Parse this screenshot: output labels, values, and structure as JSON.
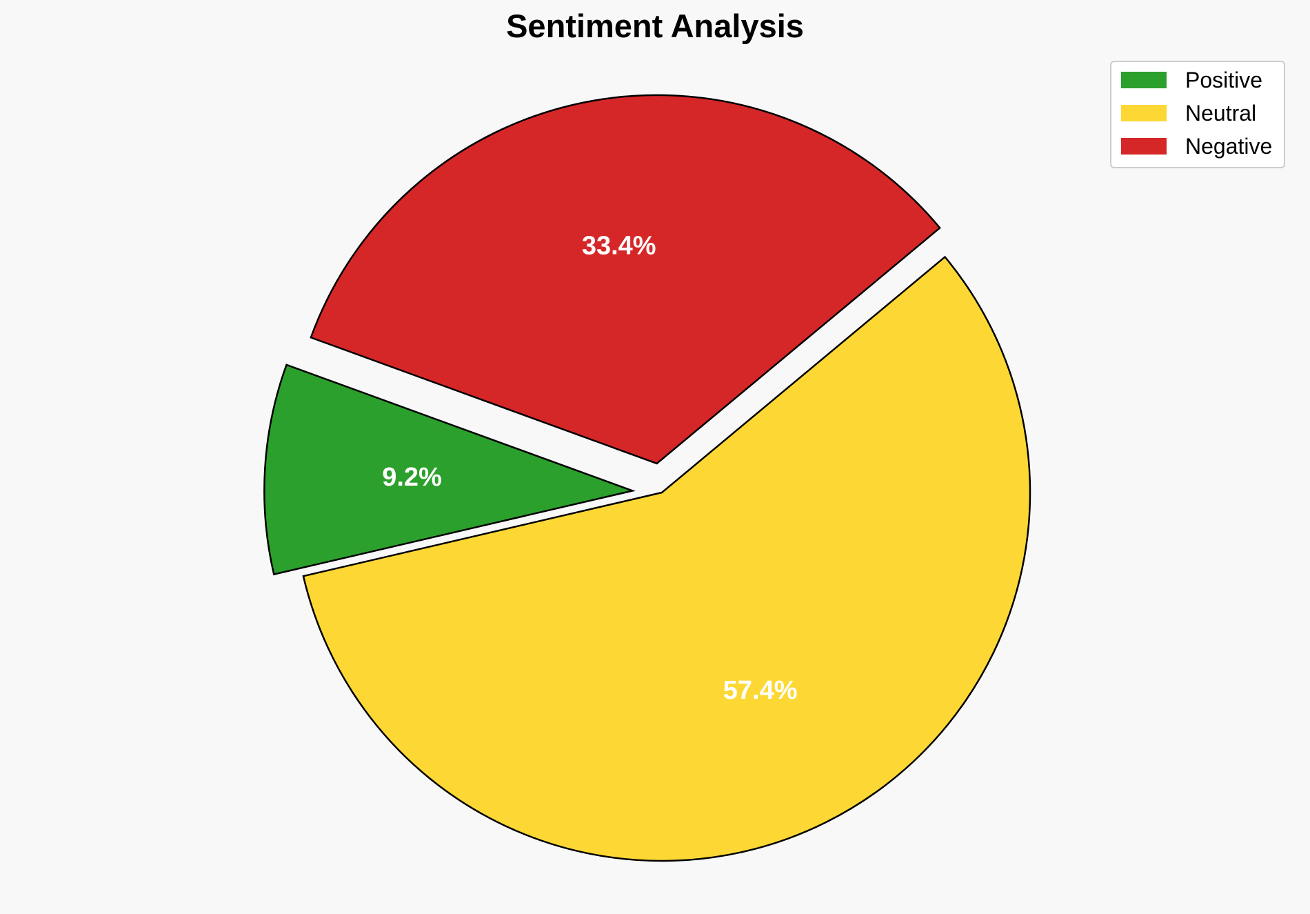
{
  "chart_data": {
    "type": "pie",
    "title": "Sentiment Analysis",
    "slices": [
      {
        "label": "Positive",
        "value": 9.2,
        "pct_label": "9.2%",
        "color": "#2ca02c",
        "exploded": true
      },
      {
        "label": "Neutral",
        "value": 57.4,
        "pct_label": "57.4%",
        "color": "#fdd835",
        "exploded": false
      },
      {
        "label": "Negative",
        "value": 33.4,
        "pct_label": "33.4%",
        "color": "#d62728",
        "exploded": true
      }
    ],
    "start_angle_deg": 160,
    "direction": "counterclockwise",
    "legend_position": "top-right",
    "edge_color": "#000000",
    "background": "#f8f8f8"
  }
}
